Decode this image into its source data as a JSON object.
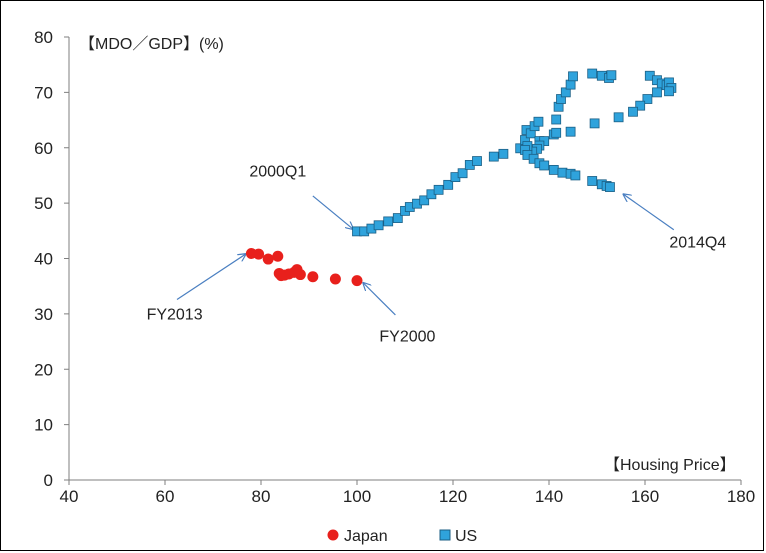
{
  "chart_data": {
    "type": "scatter",
    "ylabel": "【MDO／GDP】(%)",
    "xlabel": "【Housing Price】",
    "xlim": [
      40,
      180
    ],
    "ylim": [
      0,
      80
    ],
    "xticks": [
      "40",
      "60",
      "80",
      "100",
      "120",
      "140",
      "160",
      "180"
    ],
    "yticks": [
      "0",
      "10",
      "20",
      "30",
      "40",
      "50",
      "60",
      "70",
      "80"
    ],
    "grid": false,
    "legend_position": "bottom",
    "colors": {
      "Japan": "#e8201c",
      "US": "#2fa3dc",
      "arrow": "#4a7fc1"
    },
    "series": [
      {
        "name": "Japan",
        "marker": "circle",
        "x": [
          100.0,
          95.5,
          90.8,
          88.2,
          87.5,
          86.9,
          85.8,
          84.9,
          84.2,
          83.8,
          83.5,
          81.5,
          79.5,
          78.0
        ],
        "y": [
          36.0,
          36.3,
          36.7,
          37.1,
          38.0,
          37.5,
          37.2,
          37.0,
          36.9,
          37.3,
          40.4,
          39.9,
          40.8,
          40.9
        ]
      },
      {
        "name": "US",
        "marker": "square",
        "x": [
          100.0,
          101.5,
          103.0,
          104.5,
          106.5,
          108.5,
          110.0,
          111.0,
          112.5,
          114.0,
          115.5,
          117.0,
          119.0,
          120.5,
          122.0,
          123.5,
          125.0,
          128.5,
          130.5,
          134.0,
          135.0,
          135.3,
          136.2,
          137.0,
          137.8,
          138.0,
          139.0,
          141.0,
          141.5,
          142.0,
          142.5,
          143.5,
          144.5,
          145.0,
          149.0,
          151.0,
          152.5,
          153.0,
          161.0,
          162.5,
          163.5,
          164.5,
          165.0,
          165.5,
          165.0,
          162.5,
          160.5,
          159.0,
          157.5,
          154.5,
          149.5,
          144.5,
          141.5,
          138.0,
          137.5,
          136.5,
          135.5,
          135.0,
          135.5,
          136.8,
          138.0,
          139.0,
          141.0,
          142.8,
          144.5,
          145.5,
          149.0,
          151.0,
          152.0,
          152.7
        ],
        "y": [
          44.9,
          44.9,
          45.4,
          46.0,
          46.7,
          47.3,
          48.6,
          49.3,
          49.9,
          50.5,
          51.6,
          52.4,
          53.3,
          54.7,
          55.4,
          56.9,
          57.6,
          58.4,
          58.9,
          59.9,
          61.4,
          63.2,
          62.6,
          63.9,
          64.7,
          61.2,
          61.2,
          62.4,
          65.1,
          67.4,
          68.8,
          70.0,
          71.4,
          72.9,
          73.4,
          73.0,
          72.6,
          73.1,
          73.0,
          72.2,
          71.6,
          71.3,
          71.8,
          70.8,
          70.2,
          70.0,
          68.8,
          67.6,
          66.5,
          65.5,
          64.4,
          62.9,
          62.7,
          60.4,
          59.8,
          59.3,
          60.3,
          59.6,
          58.7,
          58.0,
          57.2,
          56.8,
          56.0,
          55.5,
          55.3,
          55.0,
          54.0,
          53.4,
          53.1,
          52.9
        ]
      }
    ],
    "annotations": [
      {
        "text": "2000Q1",
        "x_text": 83.5,
        "y_text": 54.8,
        "x_from": 90.8,
        "y_from": 51.3,
        "x_to": 99.2,
        "y_to": 45.3
      },
      {
        "text": "2014Q4",
        "x_text": 171.0,
        "y_text": 42.0,
        "x_from": 166.0,
        "y_from": 45.2,
        "x_to": 155.5,
        "y_to": 51.6
      },
      {
        "text": "FY2013",
        "x_text": 62.0,
        "y_text": 29.0,
        "x_from": 62.5,
        "y_from": 32.6,
        "x_to": 76.8,
        "y_to": 40.8
      },
      {
        "text": "FY2000",
        "x_text": 110.5,
        "y_text": 25.0,
        "x_from": 108.0,
        "y_from": 29.8,
        "x_to": 101.3,
        "y_to": 35.6
      }
    ]
  }
}
